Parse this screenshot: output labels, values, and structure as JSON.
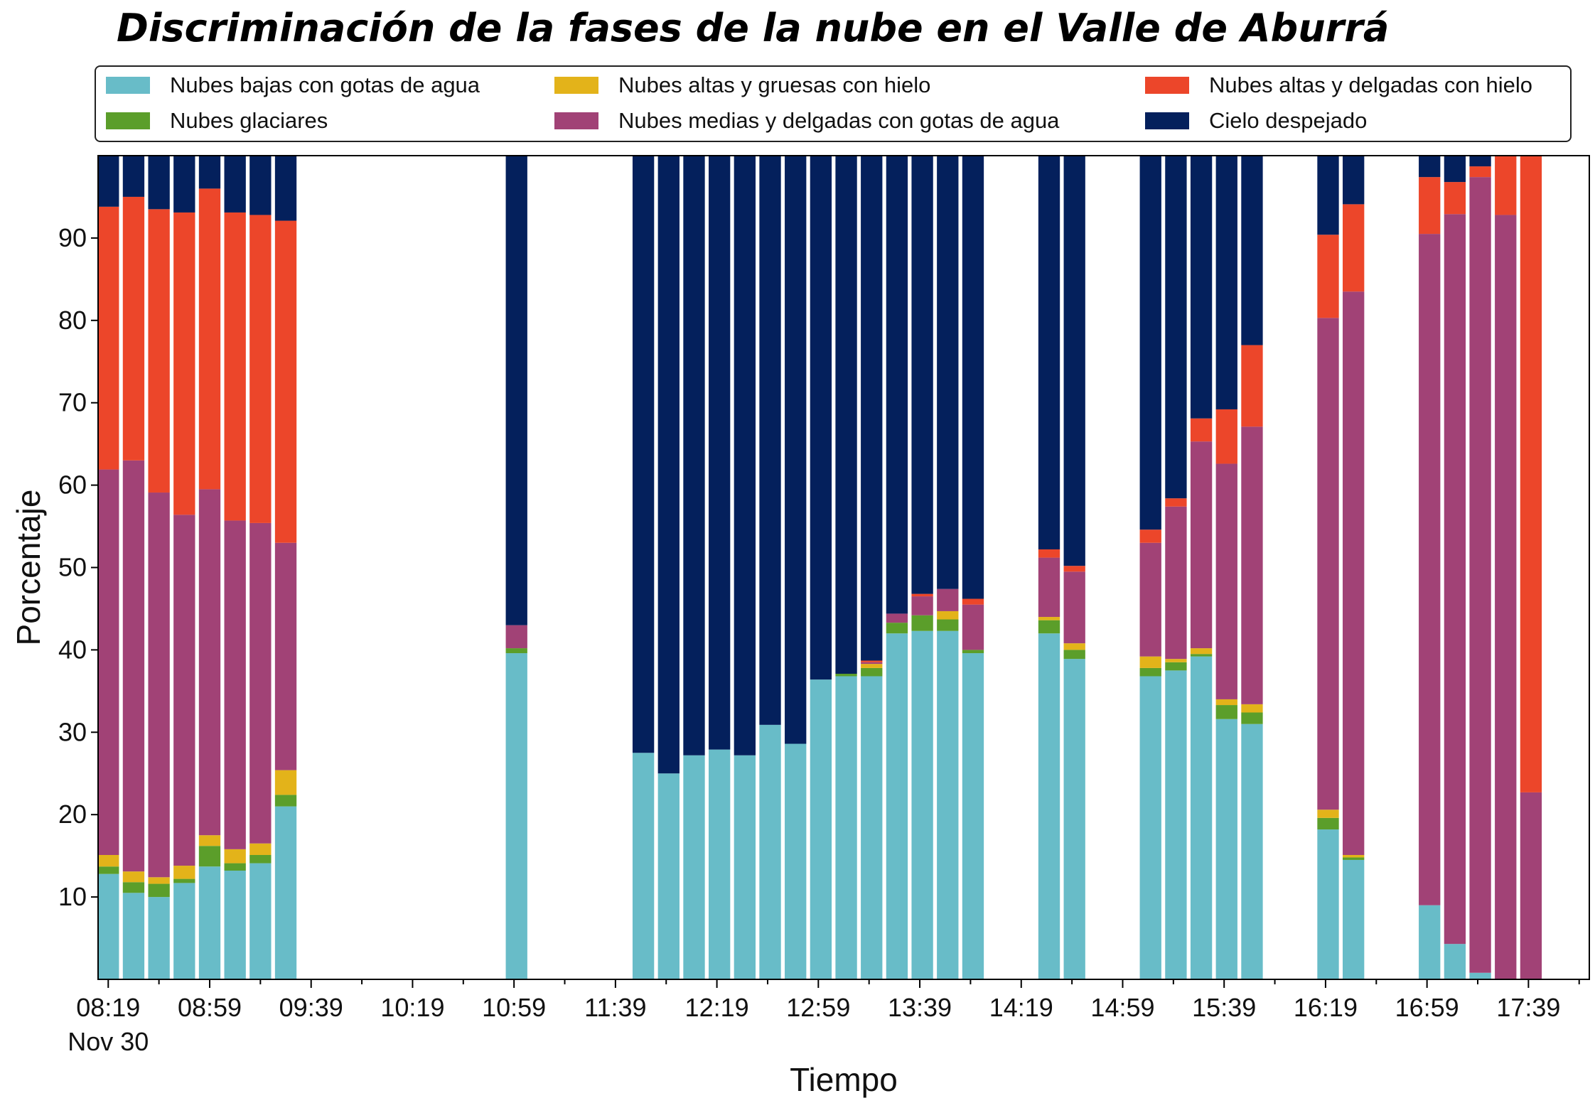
{
  "chart_data": {
    "type": "bar",
    "stacked": true,
    "title": "Discriminación de la fases de la nube en el Valle de Aburrá",
    "xlabel": "Tiempo",
    "ylabel": "Porcentaje",
    "ylim": [
      0,
      100
    ],
    "yticks": [
      10,
      20,
      30,
      40,
      50,
      60,
      70,
      80,
      90
    ],
    "xlim_minutes_after_0819": [
      -4,
      584
    ],
    "xtick_labels": [
      "08:19",
      "08:59",
      "09:39",
      "10:19",
      "10:59",
      "11:39",
      "12:19",
      "12:59",
      "13:39",
      "14:19",
      "14:59",
      "15:39",
      "16:19",
      "16:59",
      "17:39"
    ],
    "xdate_label": "Nov 30",
    "grid": false,
    "legend_position": "top",
    "series": [
      {
        "name": "Nubes bajas con gotas de agua",
        "color": "#68bcc8"
      },
      {
        "name": "Nubes glaciares",
        "color": "#5b9e2a"
      },
      {
        "name": "Nubes altas y gruesas con hielo",
        "color": "#e3b31a"
      },
      {
        "name": "Nubes medias y delgadas con gotas de agua",
        "color": "#a14276"
      },
      {
        "name": "Nubes altas y delgadas con hielo",
        "color": "#ec462a"
      },
      {
        "name": "Cielo despejado",
        "color": "#04205c"
      }
    ],
    "bars": [
      {
        "time": "08:19",
        "values": [
          12.8,
          0.9,
          1.4,
          46.8,
          31.9,
          6.2
        ]
      },
      {
        "time": "08:29",
        "values": [
          10.5,
          1.3,
          1.3,
          49.9,
          32.0,
          5.0
        ]
      },
      {
        "time": "08:39",
        "values": [
          10.0,
          1.6,
          0.8,
          46.7,
          34.4,
          6.5
        ]
      },
      {
        "time": "08:49",
        "values": [
          11.7,
          0.5,
          1.6,
          42.6,
          36.7,
          6.9
        ]
      },
      {
        "time": "08:59",
        "values": [
          13.7,
          2.5,
          1.3,
          42.0,
          36.5,
          4.0
        ]
      },
      {
        "time": "09:09",
        "values": [
          13.2,
          0.9,
          1.7,
          39.9,
          37.4,
          6.9
        ]
      },
      {
        "time": "09:19",
        "values": [
          14.1,
          1.0,
          1.4,
          38.9,
          37.4,
          7.2
        ]
      },
      {
        "time": "09:29",
        "values": [
          21.0,
          1.4,
          3.0,
          27.6,
          39.1,
          7.9
        ]
      },
      {
        "time": "11:00",
        "values": [
          39.6,
          0.6,
          0.0,
          2.8,
          0.0,
          57.0
        ]
      },
      {
        "time": "11:50",
        "values": [
          27.5,
          0.0,
          0.0,
          0.0,
          0.0,
          72.5
        ]
      },
      {
        "time": "12:00",
        "values": [
          25.0,
          0.0,
          0.0,
          0.0,
          0.0,
          75.0
        ]
      },
      {
        "time": "12:10",
        "values": [
          27.2,
          0.0,
          0.0,
          0.0,
          0.0,
          72.8
        ]
      },
      {
        "time": "12:20",
        "values": [
          27.9,
          0.0,
          0.0,
          0.0,
          0.0,
          72.1
        ]
      },
      {
        "time": "12:30",
        "values": [
          27.2,
          0.0,
          0.0,
          0.0,
          0.0,
          72.8
        ]
      },
      {
        "time": "12:40",
        "values": [
          30.9,
          0.0,
          0.0,
          0.0,
          0.0,
          69.1
        ]
      },
      {
        "time": "12:50",
        "values": [
          28.6,
          0.0,
          0.0,
          0.0,
          0.0,
          71.4
        ]
      },
      {
        "time": "13:00",
        "values": [
          36.4,
          0.0,
          0.0,
          0.0,
          0.0,
          63.6
        ]
      },
      {
        "time": "13:10",
        "values": [
          36.8,
          0.3,
          0.0,
          0.0,
          0.0,
          62.9
        ]
      },
      {
        "time": "13:20",
        "values": [
          36.8,
          1.0,
          0.5,
          0.2,
          0.2,
          61.3
        ]
      },
      {
        "time": "13:30",
        "values": [
          42.0,
          1.3,
          0.0,
          1.1,
          0.0,
          55.6
        ]
      },
      {
        "time": "13:40",
        "values": [
          42.3,
          1.9,
          0.0,
          2.3,
          0.3,
          53.2
        ]
      },
      {
        "time": "13:50",
        "values": [
          42.3,
          1.4,
          1.0,
          2.7,
          0.0,
          52.6
        ]
      },
      {
        "time": "14:00",
        "values": [
          39.6,
          0.4,
          0.0,
          5.5,
          0.7,
          53.8
        ]
      },
      {
        "time": "14:30",
        "values": [
          42.0,
          1.6,
          0.4,
          7.2,
          1.0,
          47.8
        ]
      },
      {
        "time": "14:40",
        "values": [
          38.9,
          1.1,
          0.8,
          8.7,
          0.7,
          49.8
        ]
      },
      {
        "time": "15:10",
        "values": [
          36.8,
          1.0,
          1.4,
          13.8,
          1.6,
          45.4
        ]
      },
      {
        "time": "15:20",
        "values": [
          37.5,
          1.0,
          0.4,
          18.5,
          1.0,
          41.6
        ]
      },
      {
        "time": "15:30",
        "values": [
          39.2,
          0.3,
          0.7,
          25.1,
          2.8,
          31.9
        ]
      },
      {
        "time": "15:40",
        "values": [
          31.6,
          1.7,
          0.7,
          28.6,
          6.6,
          30.8
        ]
      },
      {
        "time": "15:50",
        "values": [
          31.0,
          1.4,
          1.0,
          33.7,
          9.9,
          23.0
        ]
      },
      {
        "time": "16:20",
        "values": [
          18.2,
          1.4,
          1.0,
          59.7,
          10.1,
          9.6
        ]
      },
      {
        "time": "16:30",
        "values": [
          14.5,
          0.3,
          0.3,
          68.4,
          10.6,
          5.9
        ]
      },
      {
        "time": "17:00",
        "values": [
          9.0,
          0.0,
          0.0,
          81.5,
          6.9,
          2.6
        ]
      },
      {
        "time": "17:10",
        "values": [
          4.3,
          0.0,
          0.0,
          88.6,
          3.9,
          3.2
        ]
      },
      {
        "time": "17:20",
        "values": [
          0.8,
          0.0,
          0.0,
          96.6,
          1.3,
          1.3
        ]
      },
      {
        "time": "17:30",
        "values": [
          0.0,
          0.0,
          0.0,
          92.8,
          7.2,
          0.0
        ]
      },
      {
        "time": "17:40",
        "values": [
          0.0,
          0.0,
          0.0,
          22.7,
          77.3,
          0.0
        ]
      }
    ]
  }
}
